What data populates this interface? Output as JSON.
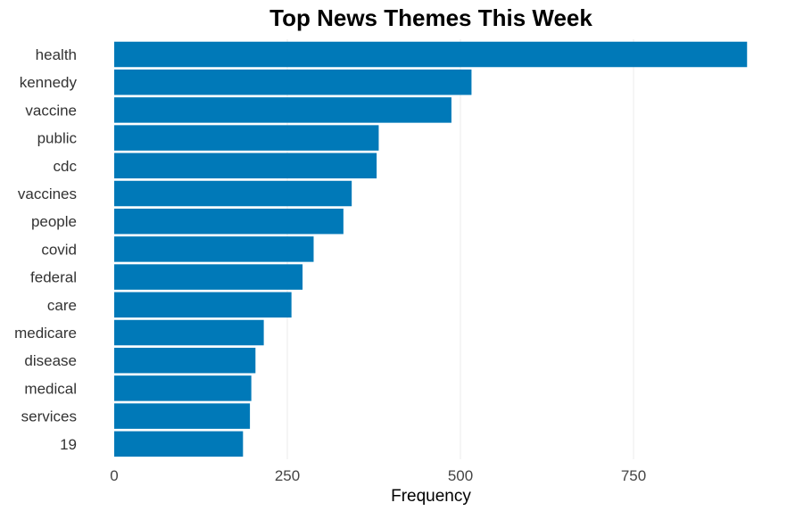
{
  "chart_data": {
    "type": "bar",
    "orientation": "horizontal",
    "title": "Top News Themes This Week",
    "xlabel": "Frequency",
    "ylabel": "",
    "categories": [
      "health",
      "kennedy",
      "vaccine",
      "public",
      "cdc",
      "vaccines",
      "people",
      "covid",
      "federal",
      "care",
      "medicare",
      "disease",
      "medical",
      "services",
      "19"
    ],
    "values": [
      914,
      516,
      487,
      382,
      379,
      343,
      331,
      288,
      272,
      256,
      216,
      204,
      198,
      196,
      186
    ],
    "xlim": [
      0,
      940
    ],
    "xticks": [
      "0",
      "250",
      "500",
      "750"
    ],
    "grid": "vertical",
    "bar_color": "#0079b8"
  }
}
